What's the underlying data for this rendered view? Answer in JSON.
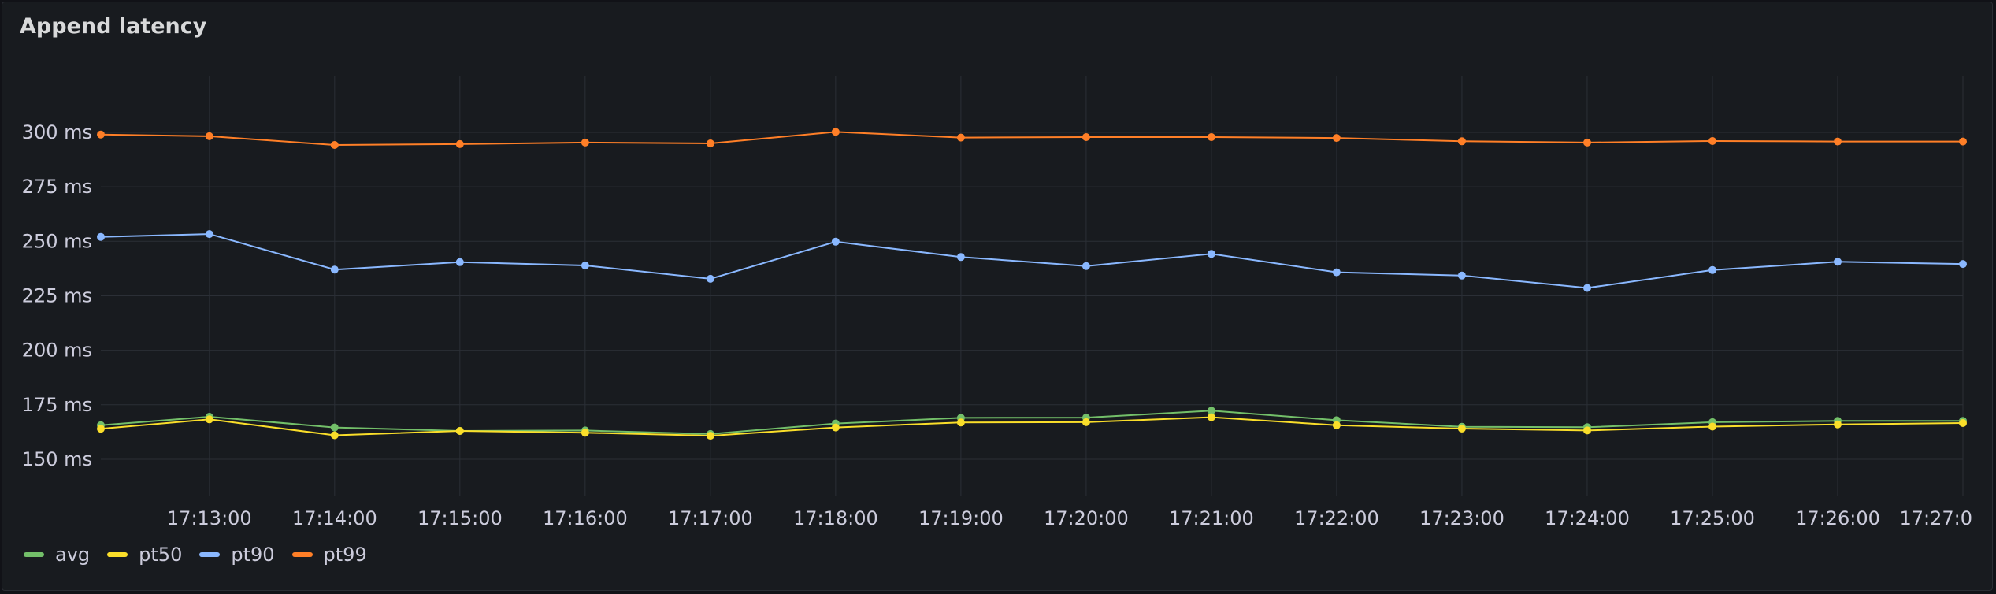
{
  "panel": {
    "title": "Append latency"
  },
  "chart_data": {
    "type": "line",
    "title": "Append latency",
    "xlabel": "",
    "ylabel": "",
    "y_unit": "ms",
    "ylim": [
      133,
      326
    ],
    "yticks": [
      150,
      175,
      200,
      225,
      250,
      275,
      300
    ],
    "ytick_labels": [
      "150 ms",
      "175 ms",
      "200 ms",
      "225 ms",
      "250 ms",
      "275 ms",
      "300 ms"
    ],
    "x": [
      "17:12:08",
      "17:13:00",
      "17:14:00",
      "17:15:00",
      "17:16:00",
      "17:17:00",
      "17:18:00",
      "17:19:00",
      "17:20:00",
      "17:21:00",
      "17:22:00",
      "17:23:00",
      "17:24:00",
      "17:25:00",
      "17:26:00",
      "17:27:00"
    ],
    "xtick_labels": [
      "17:13:00",
      "17:14:00",
      "17:15:00",
      "17:16:00",
      "17:17:00",
      "17:18:00",
      "17:19:00",
      "17:20:00",
      "17:21:00",
      "17:22:00",
      "17:23:00",
      "17:24:00",
      "17:25:00",
      "17:26:00",
      "17:27:0"
    ],
    "grid": true,
    "legend_position": "bottom-left",
    "series": [
      {
        "name": "avg",
        "color": "#73bf69",
        "values": [
          165.6,
          169.5,
          164.6,
          163.0,
          163.2,
          161.6,
          166.4,
          169.0,
          169.1,
          172.3,
          167.9,
          164.9,
          164.7,
          167.0,
          167.6,
          167.6
        ]
      },
      {
        "name": "pt50",
        "color": "#fade2a",
        "values": [
          164.0,
          168.3,
          161.0,
          163.0,
          162.2,
          160.8,
          164.6,
          166.9,
          167.0,
          169.3,
          165.6,
          164.1,
          163.2,
          165.0,
          166.0,
          166.6
        ]
      },
      {
        "name": "pt90",
        "color": "#8ab8ff",
        "values": [
          252.0,
          253.3,
          237.0,
          240.4,
          238.9,
          232.8,
          249.8,
          242.8,
          238.6,
          244.2,
          235.8,
          234.3,
          228.6,
          236.8,
          240.6,
          239.6
        ]
      },
      {
        "name": "pt99",
        "color": "#ff7f27",
        "values": [
          299.0,
          298.2,
          294.2,
          294.6,
          295.3,
          294.9,
          300.2,
          297.6,
          297.8,
          297.8,
          297.4,
          295.9,
          295.3,
          296.0,
          295.8,
          295.8
        ]
      }
    ]
  }
}
